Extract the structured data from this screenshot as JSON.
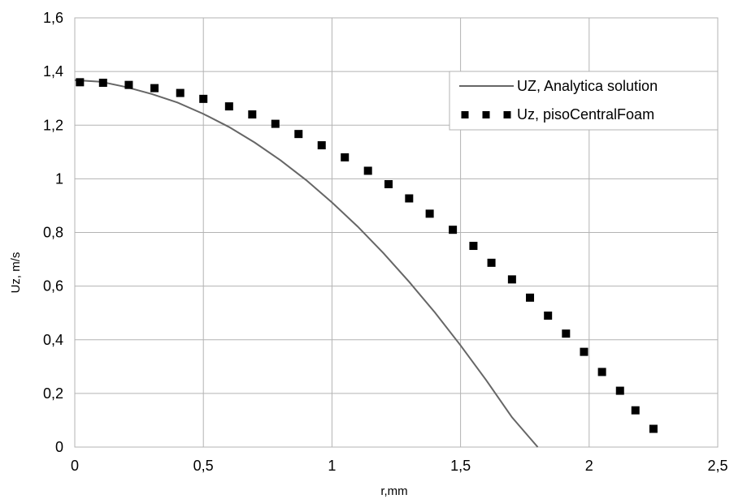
{
  "chart_data": {
    "type": "line",
    "xlabel": "r,mm",
    "ylabel": "Uz, m/s",
    "xlim": [
      0,
      2.5
    ],
    "ylim": [
      0,
      1.6
    ],
    "x_ticks": [
      "0",
      "0,5",
      "1",
      "1,5",
      "2",
      "2,5"
    ],
    "y_ticks": [
      "0",
      "0,2",
      "0,4",
      "0,6",
      "0,8",
      "1",
      "1,2",
      "1,4",
      "1,6"
    ],
    "grid": true,
    "legend_position": "top-right",
    "series": [
      {
        "name": "UZ, Analytica solution",
        "style": "line",
        "color": "#666666",
        "x": [
          0,
          0.1,
          0.2,
          0.3,
          0.4,
          0.5,
          0.6,
          0.7,
          0.8,
          0.9,
          1.0,
          1.1,
          1.2,
          1.3,
          1.4,
          1.5,
          1.6,
          1.7,
          1.8,
          1.9,
          2.0,
          2.1,
          2.2,
          2.3
        ],
        "y": [
          1.368,
          1.362,
          1.342,
          1.316,
          1.284,
          1.242,
          1.193,
          1.135,
          1.069,
          0.995,
          0.912,
          0.822,
          0.723,
          0.616,
          0.502,
          0.379,
          0.249,
          0.111,
          0.0,
          0,
          0,
          0,
          0,
          0
        ]
      },
      {
        "name": "Uz, pisoCentralFoam",
        "style": "markers",
        "color": "#000000",
        "x": [
          0.02,
          0.11,
          0.21,
          0.31,
          0.41,
          0.5,
          0.6,
          0.69,
          0.78,
          0.87,
          0.96,
          1.05,
          1.14,
          1.22,
          1.3,
          1.38,
          1.47,
          1.55,
          1.62,
          1.7,
          1.77,
          1.84,
          1.91,
          1.98,
          2.05,
          2.12,
          2.18,
          2.25
        ],
        "y": [
          1.36,
          1.358,
          1.35,
          1.338,
          1.32,
          1.298,
          1.27,
          1.24,
          1.205,
          1.167,
          1.125,
          1.08,
          1.03,
          0.98,
          0.927,
          0.87,
          0.81,
          0.75,
          0.687,
          0.625,
          0.557,
          0.49,
          0.423,
          0.355,
          0.28,
          0.21,
          0.137,
          0.068
        ]
      }
    ]
  }
}
